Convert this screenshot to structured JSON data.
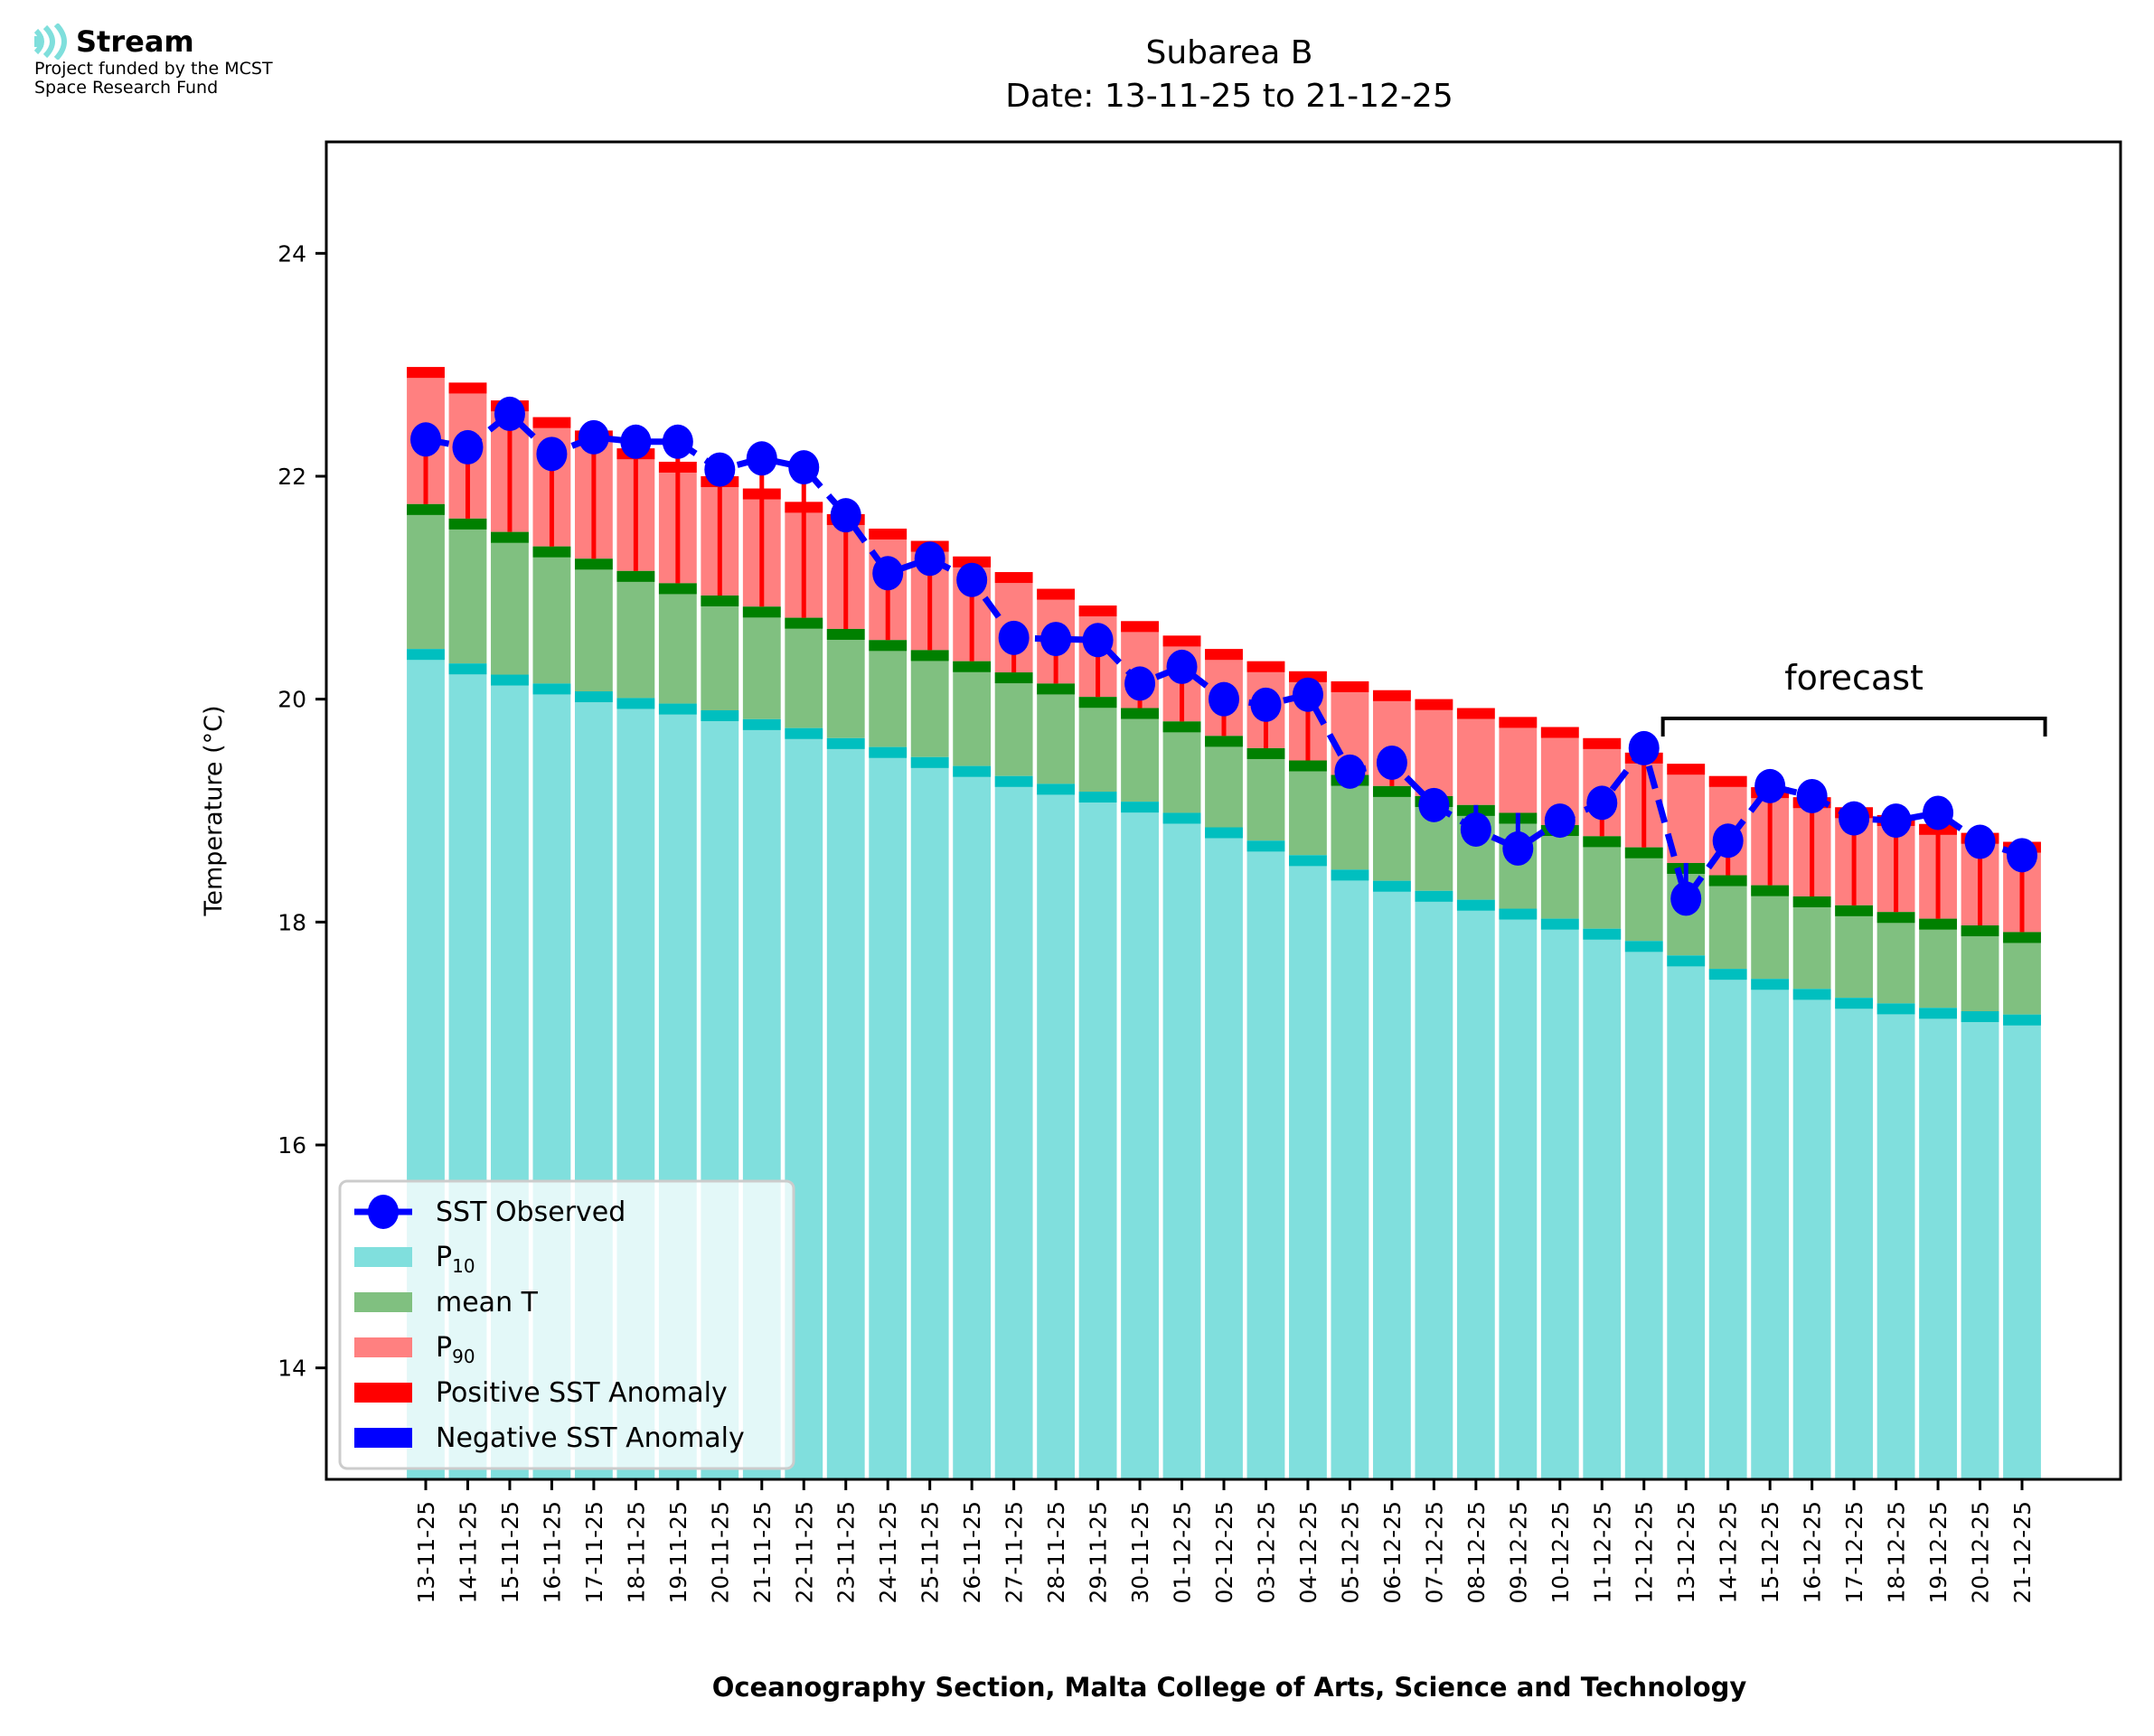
{
  "logo": {
    "icon": "stream-waves-icon",
    "name": "Stream",
    "funding_line1": "Project funded by the MCST",
    "funding_line2": "Space Research Fund"
  },
  "colors": {
    "p10": "#80dfdd",
    "p10_edge": "#00bfbf",
    "mean": "#80c080",
    "mean_edge": "#008000",
    "p90": "#ff8080",
    "p90_edge": "#ff0000",
    "positive_anomaly": "#ff0000",
    "negative_anomaly": "#0000ff",
    "sst": "#0000ff",
    "legend_frame": "#cccccc"
  },
  "chart_data": {
    "type": "bar",
    "title": "Subarea B",
    "subtitle": "Date: 13-11-25 to 21-12-25",
    "xlabel": "Oceanography Section, Malta College of Arts, Science and Technology",
    "ylabel": "Temperature (°C)",
    "ylim": [
      13.0,
      25.0
    ],
    "yticks": [
      14,
      16,
      18,
      20,
      22,
      24
    ],
    "grid": false,
    "legend_position": "lower-left",
    "annotation": {
      "text": "forecast",
      "from_category": "13-12-25",
      "to_category": "21-12-25"
    },
    "categories": [
      "13-11-25",
      "14-11-25",
      "15-11-25",
      "16-11-25",
      "17-11-25",
      "18-11-25",
      "19-11-25",
      "20-11-25",
      "21-11-25",
      "22-11-25",
      "23-11-25",
      "24-11-25",
      "25-11-25",
      "26-11-25",
      "27-11-25",
      "28-11-25",
      "29-11-25",
      "30-11-25",
      "01-12-25",
      "02-12-25",
      "03-12-25",
      "04-12-25",
      "05-12-25",
      "06-12-25",
      "07-12-25",
      "08-12-25",
      "09-12-25",
      "10-12-25",
      "11-12-25",
      "12-12-25",
      "13-12-25",
      "14-12-25",
      "15-12-25",
      "16-12-25",
      "17-12-25",
      "18-12-25",
      "19-12-25",
      "20-12-25",
      "21-12-25"
    ],
    "series": [
      {
        "name": "P10",
        "legend_label": "P",
        "legend_sub": "10",
        "kind": "bar",
        "values": [
          20.45,
          20.32,
          20.22,
          20.14,
          20.07,
          20.01,
          19.96,
          19.9,
          19.82,
          19.74,
          19.65,
          19.57,
          19.48,
          19.4,
          19.31,
          19.24,
          19.17,
          19.08,
          18.98,
          18.85,
          18.73,
          18.6,
          18.47,
          18.37,
          18.28,
          18.2,
          18.12,
          18.03,
          17.94,
          17.83,
          17.7,
          17.58,
          17.49,
          17.4,
          17.32,
          17.27,
          17.23,
          17.2,
          17.17
        ]
      },
      {
        "name": "mean T",
        "legend_label": "mean T",
        "kind": "bar",
        "values": [
          21.75,
          21.62,
          21.5,
          21.37,
          21.26,
          21.15,
          21.04,
          20.93,
          20.83,
          20.73,
          20.63,
          20.53,
          20.44,
          20.34,
          20.24,
          20.14,
          20.02,
          19.92,
          19.8,
          19.67,
          19.56,
          19.45,
          19.32,
          19.22,
          19.13,
          19.05,
          18.98,
          18.87,
          18.77,
          18.67,
          18.53,
          18.42,
          18.33,
          18.23,
          18.15,
          18.09,
          18.03,
          17.97,
          17.91
        ]
      },
      {
        "name": "P90",
        "legend_label": "P",
        "legend_sub": "90",
        "kind": "bar",
        "values": [
          22.98,
          22.84,
          22.68,
          22.53,
          22.41,
          22.25,
          22.13,
          22.0,
          21.89,
          21.77,
          21.66,
          21.53,
          21.42,
          21.28,
          21.14,
          20.99,
          20.84,
          20.7,
          20.57,
          20.45,
          20.34,
          20.25,
          20.16,
          20.08,
          20.0,
          19.92,
          19.84,
          19.75,
          19.65,
          19.52,
          19.42,
          19.31,
          19.21,
          19.12,
          19.03,
          18.96,
          18.88,
          18.8,
          18.72
        ]
      },
      {
        "name": "SST Observed",
        "legend_label": "SST Observed",
        "kind": "line",
        "values": [
          22.33,
          22.26,
          22.56,
          22.2,
          22.35,
          22.31,
          22.31,
          22.06,
          22.16,
          22.08,
          21.65,
          21.13,
          21.26,
          21.07,
          20.55,
          20.54,
          20.53,
          20.14,
          20.29,
          20.0,
          19.95,
          20.04,
          19.35,
          19.43,
          19.05,
          18.83,
          18.66,
          18.91,
          19.07,
          19.56,
          18.21,
          18.73,
          19.22,
          19.13,
          18.93,
          18.91,
          18.98,
          18.72,
          18.6
        ]
      }
    ],
    "legend": [
      {
        "label": "SST Observed",
        "sub": "",
        "swatch": "line-marker"
      },
      {
        "label": "P",
        "sub": "10",
        "swatch": "p10"
      },
      {
        "label": "mean T",
        "sub": "",
        "swatch": "mean"
      },
      {
        "label": "P",
        "sub": "90",
        "swatch": "p90"
      },
      {
        "label": "Positive SST Anomaly",
        "sub": "",
        "swatch": "positive_anomaly"
      },
      {
        "label": "Negative SST Anomaly",
        "sub": "",
        "swatch": "negative_anomaly"
      }
    ]
  }
}
